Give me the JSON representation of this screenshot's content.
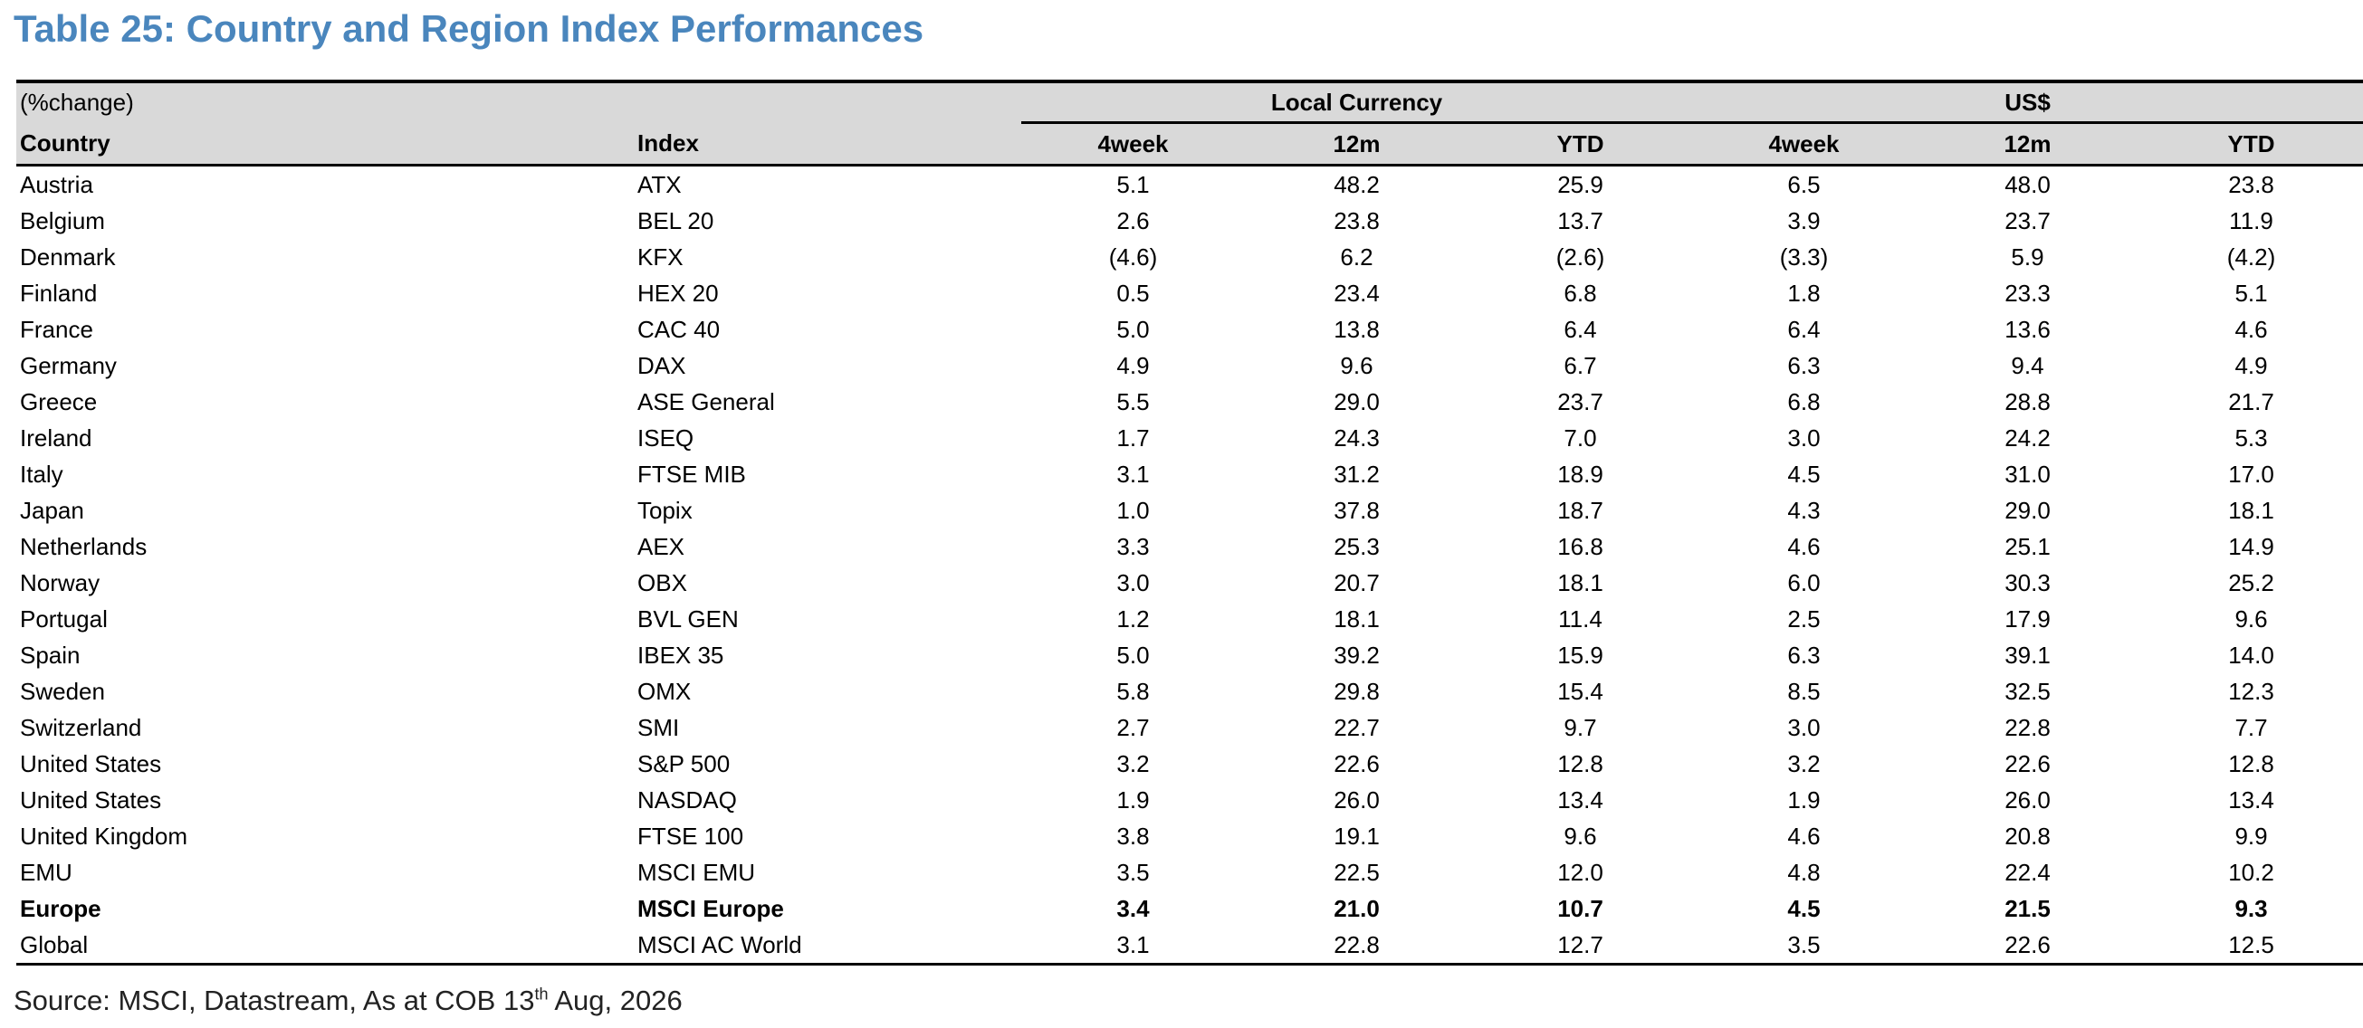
{
  "title": "Table 25: Country and Region Index Performances",
  "table": {
    "change_label": "(%change)",
    "group_local": "Local Currency",
    "group_usd": "US$",
    "columns": [
      "Country",
      "Index",
      "4week",
      "12m",
      "YTD",
      "4week",
      "12m",
      "YTD"
    ],
    "rows": [
      {
        "country": "Austria",
        "index": "ATX",
        "l4w": "5.1",
        "l12m": "48.2",
        "lytd": "25.9",
        "u4w": "6.5",
        "u12m": "48.0",
        "uytd": "23.8"
      },
      {
        "country": "Belgium",
        "index": "BEL 20",
        "l4w": "2.6",
        "l12m": "23.8",
        "lytd": "13.7",
        "u4w": "3.9",
        "u12m": "23.7",
        "uytd": "11.9"
      },
      {
        "country": "Denmark",
        "index": "KFX",
        "l4w": "(4.6)",
        "l12m": "6.2",
        "lytd": "(2.6)",
        "u4w": "(3.3)",
        "u12m": "5.9",
        "uytd": "(4.2)"
      },
      {
        "country": "Finland",
        "index": "HEX 20",
        "l4w": "0.5",
        "l12m": "23.4",
        "lytd": "6.8",
        "u4w": "1.8",
        "u12m": "23.3",
        "uytd": "5.1"
      },
      {
        "country": "France",
        "index": "CAC 40",
        "l4w": "5.0",
        "l12m": "13.8",
        "lytd": "6.4",
        "u4w": "6.4",
        "u12m": "13.6",
        "uytd": "4.6"
      },
      {
        "country": "Germany",
        "index": "DAX",
        "l4w": "4.9",
        "l12m": "9.6",
        "lytd": "6.7",
        "u4w": "6.3",
        "u12m": "9.4",
        "uytd": "4.9"
      },
      {
        "country": "Greece",
        "index": "ASE General",
        "l4w": "5.5",
        "l12m": "29.0",
        "lytd": "23.7",
        "u4w": "6.8",
        "u12m": "28.8",
        "uytd": "21.7"
      },
      {
        "country": "Ireland",
        "index": "ISEQ",
        "l4w": "1.7",
        "l12m": "24.3",
        "lytd": "7.0",
        "u4w": "3.0",
        "u12m": "24.2",
        "uytd": "5.3"
      },
      {
        "country": "Italy",
        "index": "FTSE MIB",
        "l4w": "3.1",
        "l12m": "31.2",
        "lytd": "18.9",
        "u4w": "4.5",
        "u12m": "31.0",
        "uytd": "17.0"
      },
      {
        "country": "Japan",
        "index": "Topix",
        "l4w": "1.0",
        "l12m": "37.8",
        "lytd": "18.7",
        "u4w": "4.3",
        "u12m": "29.0",
        "uytd": "18.1"
      },
      {
        "country": "Netherlands",
        "index": "AEX",
        "l4w": "3.3",
        "l12m": "25.3",
        "lytd": "16.8",
        "u4w": "4.6",
        "u12m": "25.1",
        "uytd": "14.9"
      },
      {
        "country": "Norway",
        "index": "OBX",
        "l4w": "3.0",
        "l12m": "20.7",
        "lytd": "18.1",
        "u4w": "6.0",
        "u12m": "30.3",
        "uytd": "25.2"
      },
      {
        "country": "Portugal",
        "index": "BVL GEN",
        "l4w": "1.2",
        "l12m": "18.1",
        "lytd": "11.4",
        "u4w": "2.5",
        "u12m": "17.9",
        "uytd": "9.6"
      },
      {
        "country": "Spain",
        "index": "IBEX 35",
        "l4w": "5.0",
        "l12m": "39.2",
        "lytd": "15.9",
        "u4w": "6.3",
        "u12m": "39.1",
        "uytd": "14.0"
      },
      {
        "country": "Sweden",
        "index": "OMX",
        "l4w": "5.8",
        "l12m": "29.8",
        "lytd": "15.4",
        "u4w": "8.5",
        "u12m": "32.5",
        "uytd": "12.3"
      },
      {
        "country": "Switzerland",
        "index": "SMI",
        "l4w": "2.7",
        "l12m": "22.7",
        "lytd": "9.7",
        "u4w": "3.0",
        "u12m": "22.8",
        "uytd": "7.7"
      },
      {
        "country": "United States",
        "index": "S&P 500",
        "l4w": "3.2",
        "l12m": "22.6",
        "lytd": "12.8",
        "u4w": "3.2",
        "u12m": "22.6",
        "uytd": "12.8"
      },
      {
        "country": "United States",
        "index": "NASDAQ",
        "l4w": "1.9",
        "l12m": "26.0",
        "lytd": "13.4",
        "u4w": "1.9",
        "u12m": "26.0",
        "uytd": "13.4"
      },
      {
        "country": "United Kingdom",
        "index": "FTSE 100",
        "l4w": "3.8",
        "l12m": "19.1",
        "lytd": "9.6",
        "u4w": "4.6",
        "u12m": "20.8",
        "uytd": "9.9"
      },
      {
        "country": "EMU",
        "index": "MSCI EMU",
        "l4w": "3.5",
        "l12m": "22.5",
        "lytd": "12.0",
        "u4w": "4.8",
        "u12m": "22.4",
        "uytd": "10.2"
      },
      {
        "country": "Europe",
        "index": "MSCI Europe",
        "l4w": "3.4",
        "l12m": "21.0",
        "lytd": "10.7",
        "u4w": "4.5",
        "u12m": "21.5",
        "uytd": "9.3",
        "bold": true
      },
      {
        "country": "Global",
        "index": "MSCI AC World",
        "l4w": "3.1",
        "l12m": "22.8",
        "lytd": "12.7",
        "u4w": "3.5",
        "u12m": "22.6",
        "uytd": "12.5"
      }
    ]
  },
  "source": {
    "prefix": "Source: MSCI, Datastream, As at COB 13",
    "superscript": "th",
    "suffix": " Aug, 2026"
  },
  "colors": {
    "title": "#4a86bd",
    "header_bg": "#d9d9d9"
  }
}
